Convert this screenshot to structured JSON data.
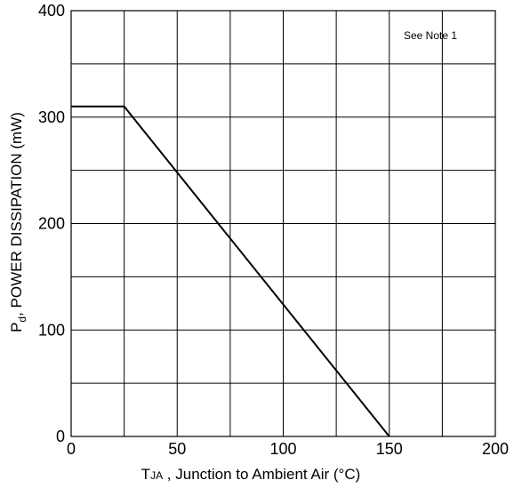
{
  "chart_data": {
    "type": "line",
    "title": "",
    "xlabel_main": "T",
    "xlabel_sub": "JA",
    "xlabel_rest": " , Junction to Ambient Air  (°C)",
    "ylabel_main": "P",
    "ylabel_sub": "d",
    "ylabel_rest": ", POWER DISSIPATION (mW)",
    "xlim": [
      0,
      200
    ],
    "ylim": [
      0,
      400
    ],
    "x_ticks": [
      0,
      50,
      100,
      150,
      200
    ],
    "y_ticks": [
      0,
      100,
      200,
      300,
      400
    ],
    "grid": true,
    "grid_x_step": 25,
    "grid_y_step": 50,
    "annotation": "See Note 1",
    "series": [
      {
        "x": [
          0,
          25,
          150
        ],
        "y": [
          310,
          310,
          0
        ]
      }
    ],
    "line_color": "#000000"
  }
}
